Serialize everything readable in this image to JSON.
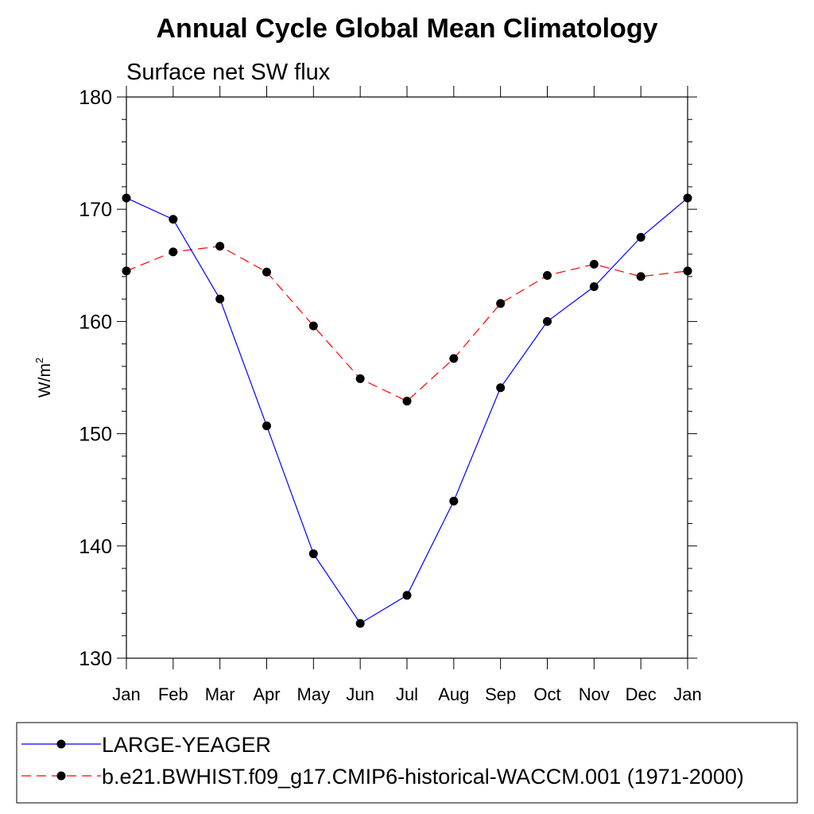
{
  "chart_data": {
    "type": "line",
    "title": "Annual Cycle Global Mean Climatology",
    "subtitle": "Surface net SW flux",
    "ylabel": "W/m",
    "ylabel_sup": "2",
    "xlabel": "",
    "ylim": [
      130,
      180
    ],
    "y_ticks": [
      130,
      140,
      150,
      160,
      170,
      180
    ],
    "categories": [
      "Jan",
      "Feb",
      "Mar",
      "Apr",
      "May",
      "Jun",
      "Jul",
      "Aug",
      "Sep",
      "Oct",
      "Nov",
      "Dec",
      "Jan"
    ],
    "grid": false,
    "legend_position": "bottom",
    "series": [
      {
        "name": "LARGE-YEAGER",
        "color": "#0000ff",
        "dashed": false,
        "values": [
          171.0,
          169.1,
          162.0,
          150.7,
          139.3,
          133.1,
          135.6,
          144.0,
          154.1,
          160.0,
          163.1,
          167.5,
          171.0
        ]
      },
      {
        "name": "b.e21.BWHIST.f09_g17.CMIP6-historical-WACCM.001 (1971-2000)",
        "color": "#ff0000",
        "dashed": true,
        "values": [
          164.5,
          166.2,
          166.7,
          164.4,
          159.6,
          154.9,
          152.9,
          156.7,
          161.6,
          164.1,
          165.1,
          164.0,
          164.5
        ]
      }
    ]
  }
}
